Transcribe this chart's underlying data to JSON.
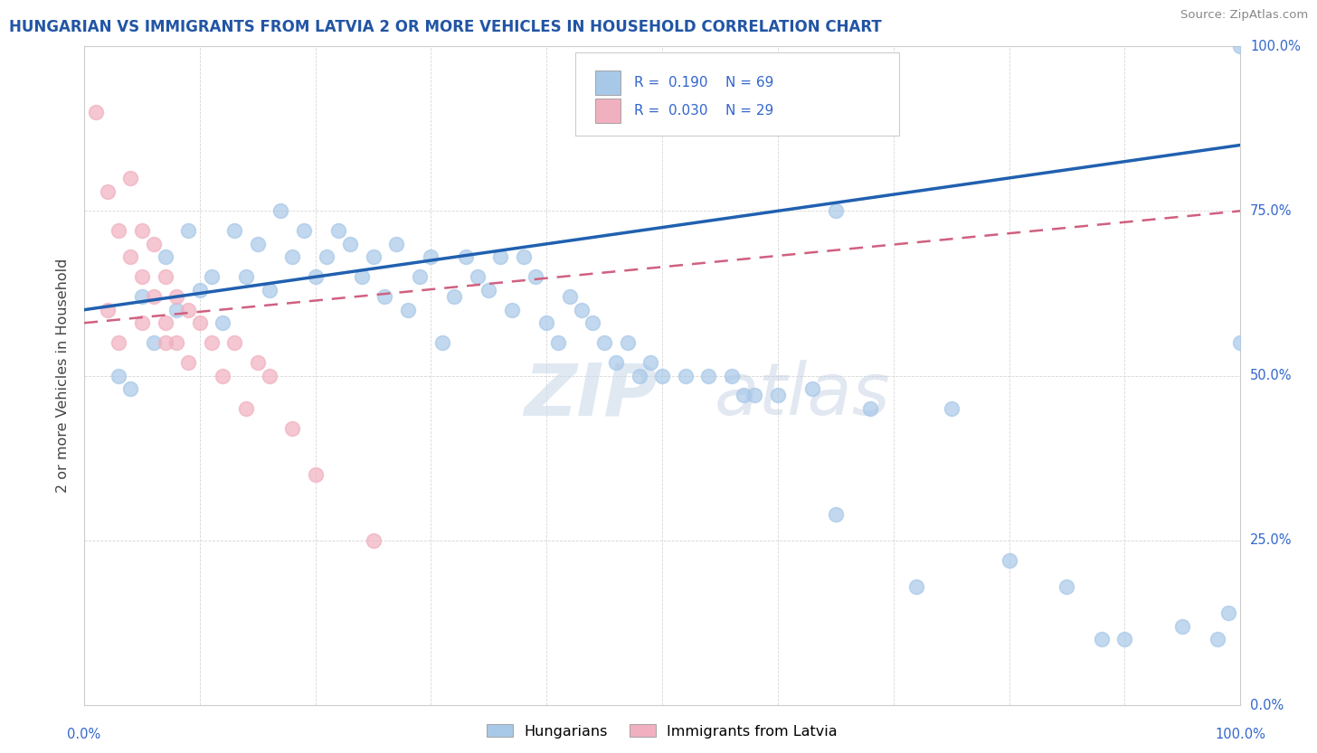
{
  "title": "HUNGARIAN VS IMMIGRANTS FROM LATVIA 2 OR MORE VEHICLES IN HOUSEHOLD CORRELATION CHART",
  "source": "Source: ZipAtlas.com",
  "ylabel": "2 or more Vehicles in Household",
  "xlim": [
    0,
    100
  ],
  "ylim": [
    0,
    100
  ],
  "watermark": "ZIPatlas",
  "legend_label1": "Hungarians",
  "legend_label2": "Immigrants from Latvia",
  "blue_color": "#a8c8e8",
  "pink_color": "#f0b0c0",
  "line_blue": "#2060b0",
  "line_pink": "#d06080",
  "title_color": "#2255a4",
  "axis_label_color": "#3366cc",
  "hungarian_x": [
    3,
    4,
    5,
    6,
    7,
    8,
    9,
    10,
    11,
    12,
    13,
    14,
    15,
    16,
    17,
    18,
    19,
    20,
    21,
    22,
    23,
    24,
    25,
    26,
    27,
    28,
    29,
    30,
    31,
    32,
    33,
    34,
    35,
    36,
    37,
    38,
    39,
    40,
    41,
    42,
    43,
    44,
    45,
    46,
    47,
    48,
    49,
    50,
    52,
    54,
    56,
    57,
    58,
    60,
    63,
    65,
    68,
    72,
    75,
    80,
    85,
    88,
    90,
    95,
    98,
    99,
    100,
    100,
    65
  ],
  "hungarian_y": [
    50,
    48,
    62,
    55,
    68,
    60,
    72,
    63,
    65,
    58,
    72,
    65,
    70,
    63,
    75,
    68,
    72,
    65,
    68,
    72,
    70,
    65,
    68,
    62,
    70,
    60,
    65,
    68,
    55,
    62,
    68,
    65,
    63,
    68,
    60,
    68,
    65,
    58,
    55,
    62,
    60,
    58,
    55,
    52,
    55,
    50,
    52,
    50,
    50,
    50,
    50,
    47,
    47,
    47,
    48,
    29,
    45,
    18,
    45,
    22,
    18,
    10,
    10,
    12,
    10,
    14,
    100,
    55,
    75
  ],
  "latvia_x": [
    1,
    2,
    3,
    4,
    4,
    5,
    5,
    5,
    6,
    6,
    7,
    7,
    7,
    8,
    8,
    9,
    9,
    10,
    11,
    12,
    13,
    14,
    15,
    16,
    18,
    20,
    25,
    2,
    3
  ],
  "latvia_y": [
    90,
    78,
    72,
    80,
    68,
    65,
    72,
    58,
    70,
    62,
    65,
    58,
    55,
    62,
    55,
    60,
    52,
    58,
    55,
    50,
    55,
    45,
    52,
    50,
    42,
    35,
    25,
    60,
    55
  ],
  "hun_line_x0": 0,
  "hun_line_x1": 100,
  "hun_line_y0": 60,
  "hun_line_y1": 85,
  "lat_line_x0": 0,
  "lat_line_x1": 100,
  "lat_line_y0": 58,
  "lat_line_y1": 75
}
